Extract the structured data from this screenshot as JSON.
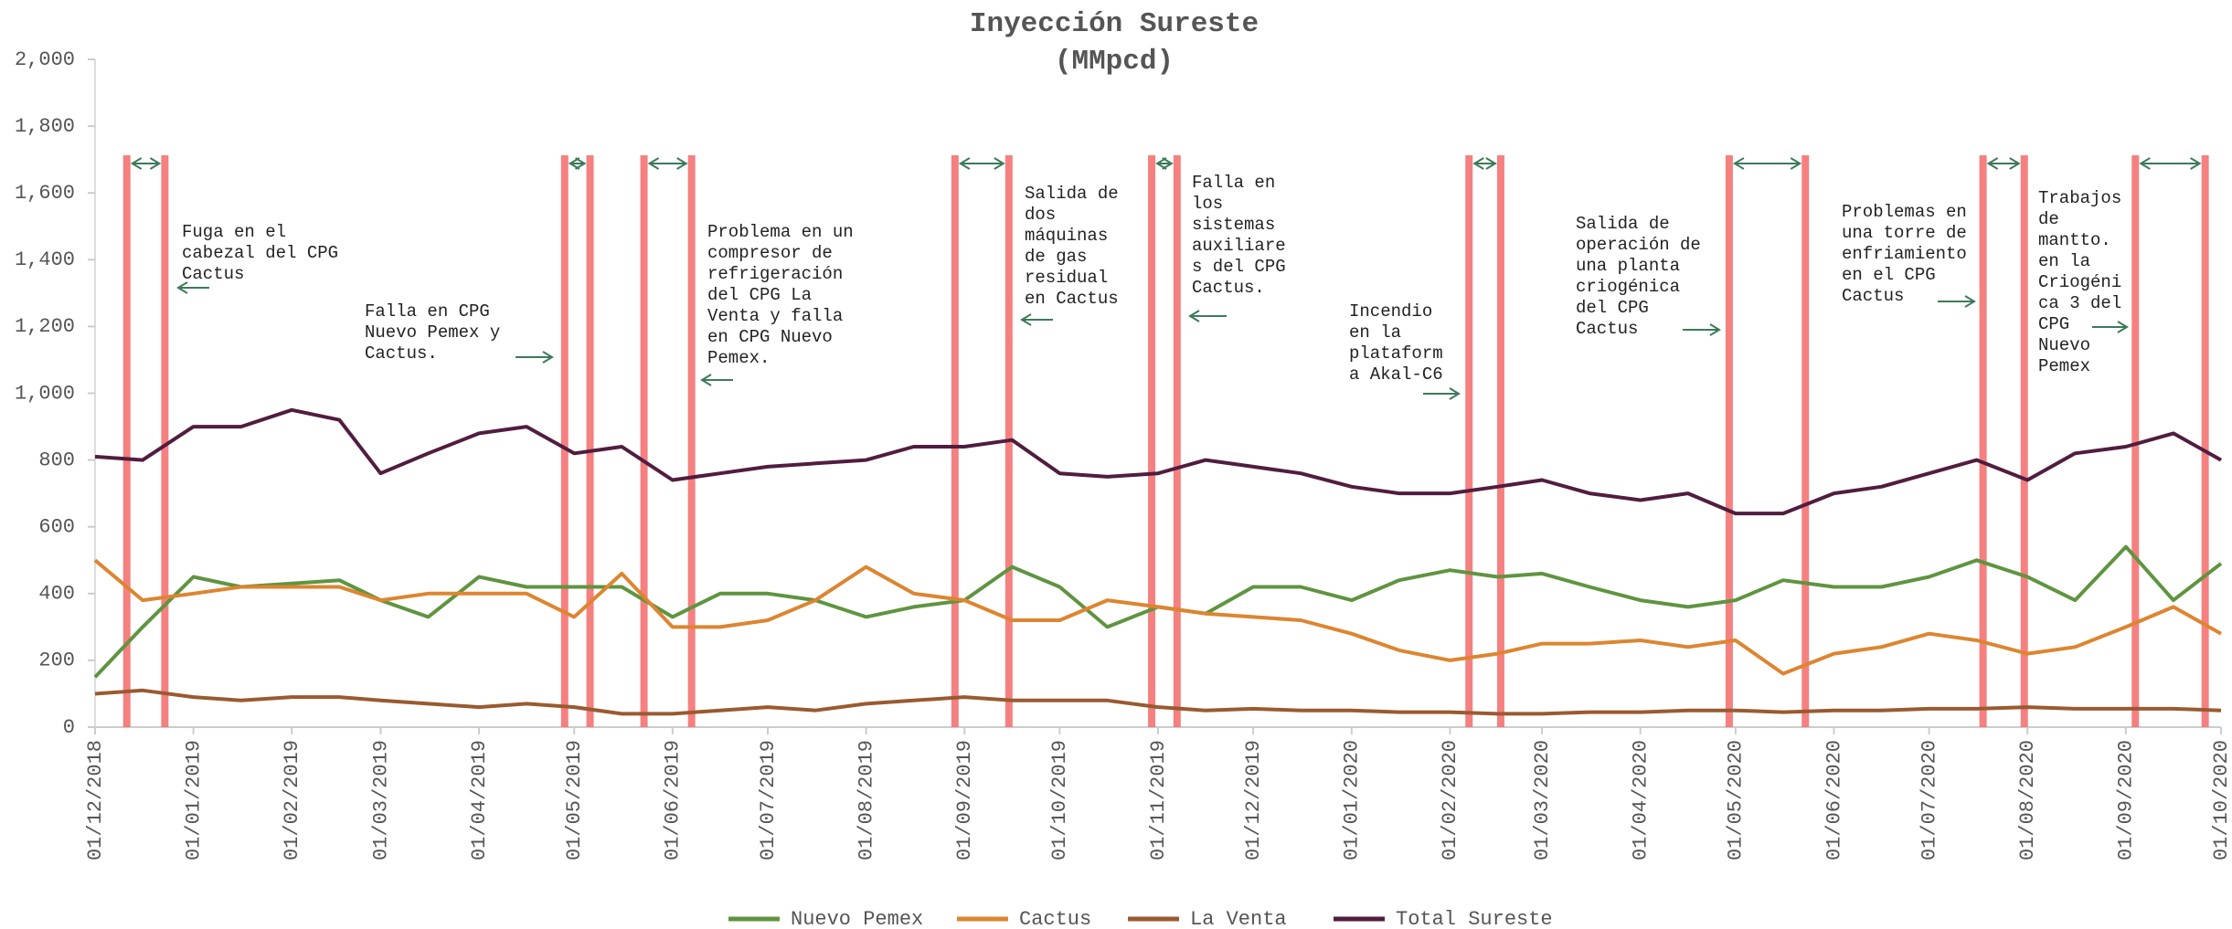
{
  "chart_data": {
    "type": "line",
    "title": "Inyección Sureste",
    "subtitle": "(MMpcd)",
    "x": [
      "01/12/2018",
      "16/12/2018",
      "01/01/2019",
      "16/01/2019",
      "01/02/2019",
      "16/02/2019",
      "01/03/2019",
      "16/03/2019",
      "01/04/2019",
      "16/04/2019",
      "01/05/2019",
      "16/05/2019",
      "01/06/2019",
      "16/06/2019",
      "01/07/2019",
      "16/07/2019",
      "01/08/2019",
      "16/08/2019",
      "01/09/2019",
      "16/09/2019",
      "01/10/2019",
      "16/10/2019",
      "01/11/2019",
      "16/11/2019",
      "01/12/2019",
      "16/12/2019",
      "01/01/2020",
      "16/01/2020",
      "01/02/2020",
      "16/02/2020",
      "01/03/2020",
      "16/03/2020",
      "01/04/2020",
      "16/04/2020",
      "01/05/2020",
      "16/05/2020",
      "01/06/2020",
      "16/06/2020",
      "01/07/2020",
      "16/07/2020",
      "01/08/2020",
      "16/08/2020",
      "01/09/2020",
      "16/09/2020",
      "01/10/2020"
    ],
    "series": [
      {
        "name": "Nuevo Pemex",
        "color": "#5f9440",
        "values": [
          150,
          300,
          450,
          420,
          430,
          440,
          380,
          330,
          450,
          420,
          420,
          420,
          330,
          400,
          400,
          380,
          330,
          360,
          380,
          480,
          420,
          300,
          360,
          340,
          420,
          420,
          380,
          440,
          470,
          450,
          460,
          420,
          380,
          360,
          380,
          440,
          420,
          420,
          450,
          500,
          450,
          380,
          540,
          380,
          490
        ]
      },
      {
        "name": "Cactus",
        "color": "#dd8530",
        "values": [
          500,
          380,
          400,
          420,
          420,
          420,
          380,
          400,
          400,
          400,
          330,
          460,
          300,
          300,
          320,
          380,
          480,
          400,
          380,
          320,
          320,
          380,
          360,
          340,
          330,
          320,
          280,
          230,
          200,
          220,
          250,
          250,
          260,
          240,
          260,
          160,
          220,
          240,
          280,
          260,
          220,
          240,
          300,
          360,
          280
        ]
      },
      {
        "name": "La Venta",
        "color": "#9a5a30",
        "values": [
          100,
          110,
          90,
          80,
          90,
          90,
          80,
          70,
          60,
          70,
          60,
          40,
          40,
          50,
          60,
          50,
          70,
          80,
          90,
          80,
          80,
          80,
          60,
          50,
          55,
          50,
          50,
          45,
          45,
          40,
          40,
          45,
          45,
          50,
          50,
          45,
          50,
          50,
          55,
          55,
          60,
          55,
          55,
          55,
          50
        ]
      },
      {
        "name": "Total Sureste",
        "color": "#511d3f",
        "values": [
          810,
          800,
          900,
          900,
          950,
          920,
          760,
          820,
          880,
          900,
          820,
          840,
          740,
          760,
          780,
          790,
          800,
          840,
          840,
          860,
          760,
          750,
          760,
          800,
          780,
          760,
          720,
          700,
          700,
          720,
          740,
          700,
          680,
          700,
          640,
          640,
          700,
          720,
          760,
          800,
          740,
          820,
          840,
          880,
          800
        ]
      }
    ],
    "xlim": [
      "01/12/2018",
      "01/10/2020"
    ],
    "xticks": [
      "01/12/2018",
      "01/01/2019",
      "01/02/2019",
      "01/03/2019",
      "01/04/2019",
      "01/05/2019",
      "01/06/2019",
      "01/07/2019",
      "01/08/2019",
      "01/09/2019",
      "01/10/2019",
      "01/11/2019",
      "01/12/2019",
      "01/01/2020",
      "01/02/2020",
      "01/03/2020",
      "01/04/2020",
      "01/05/2020",
      "01/06/2020",
      "01/07/2020",
      "01/08/2020",
      "01/09/2020",
      "01/10/2020"
    ],
    "ylim": [
      0,
      2000
    ],
    "yticks": [
      0,
      200,
      400,
      600,
      800,
      {
        "value": 1000,
        "label": "1,000"
      },
      {
        "value": 1200,
        "label": "1,200"
      },
      {
        "value": 1400,
        "label": "1,400"
      },
      {
        "value": 1600,
        "label": "1,600"
      },
      {
        "value": 1800,
        "label": "1,800"
      },
      {
        "value": 2000,
        "label": "2,000"
      }
    ],
    "event_color": "#f46b6b",
    "events": [
      {
        "start": "11/12/2018",
        "end": "23/12/2018",
        "lines": [
          "Fuga en el",
          "cabezal del CPG",
          "Cactus"
        ]
      },
      {
        "start": "28/04/2019",
        "end": "06/05/2019",
        "lines": [
          "Falla en CPG",
          "Nuevo Pemex y",
          "Cactus."
        ]
      },
      {
        "start": "23/05/2019",
        "end": "07/06/2019",
        "lines": [
          "Problema en un",
          "compresor de",
          "refrigeración",
          "del CPG La",
          "Venta y falla",
          "en CPG Nuevo",
          "Pemex."
        ]
      },
      {
        "start": "29/08/2019",
        "end": "15/09/2019",
        "lines": [
          "Salida de",
          "dos",
          "máquinas",
          "de gas",
          "residual",
          "en Cactus"
        ]
      },
      {
        "start": "30/10/2019",
        "end": "07/11/2019",
        "lines": [
          "Falla en",
          "los",
          "sistemas",
          "auxiliare",
          "s del CPG",
          "Cactus."
        ]
      },
      {
        "start": "07/02/2020",
        "end": "17/02/2020",
        "lines": [
          "Incendio",
          "en la",
          "plataform",
          "a Akal-C6"
        ]
      },
      {
        "start": "29/04/2020",
        "end": "23/05/2020",
        "lines": [
          "Salida de",
          "operación de",
          "una planta",
          "criogénica",
          "del CPG",
          "Cactus"
        ]
      },
      {
        "start": "18/07/2020",
        "end": "31/07/2020",
        "lines": [
          "Problemas en",
          "una torre de",
          "enfriamiento",
          "en el CPG",
          "Cactus"
        ]
      },
      {
        "start": "04/09/2020",
        "end": "26/09/2020",
        "lines": [
          "Trabajos",
          "de",
          "mantto.",
          "en la",
          "Criogéni",
          "ca 3 del",
          "CPG",
          "Nuevo",
          "Pemex"
        ]
      }
    ]
  }
}
